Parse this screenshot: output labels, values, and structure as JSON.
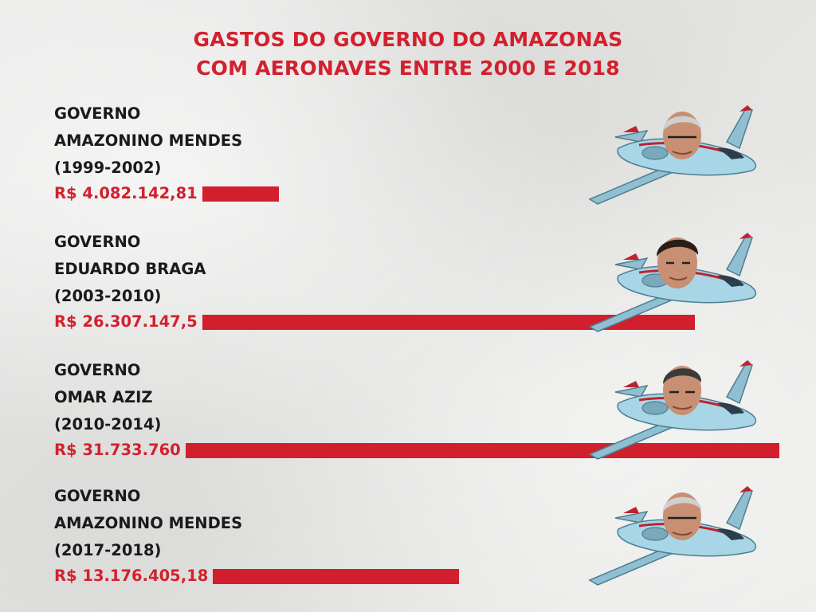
{
  "chart_data": {
    "type": "bar",
    "orientation": "horizontal",
    "title": "GASTOS DO GOVERNO DO AMAZONAS COM AERONAVES ENTRE 2000 E 2018",
    "title_lines": [
      "GASTOS DO GOVERNO DO AMAZONAS",
      "COM AERONAVES ENTRE 2000 E 2018"
    ],
    "bar_color": "#d11f2d",
    "categories": [
      {
        "line1": "GOVERNO",
        "line2": "AMAZONINO MENDES",
        "line3": "(1999-2002)"
      },
      {
        "line1": "GOVERNO",
        "line2": "EDUARDO BRAGA",
        "line3": "(2003-2010)"
      },
      {
        "line1": "GOVERNO",
        "line2": "OMAR AZIZ",
        "line3": "(2010-2014)"
      },
      {
        "line1": "GOVERNO",
        "line2": "AMAZONINO MENDES",
        "line3": "(2017-2018)"
      }
    ],
    "values": [
      4082142.81,
      26307147.5,
      31733760,
      13176405.18
    ],
    "value_labels": [
      "R$ 4.082.142,81",
      "R$ 26.307.147,5",
      "R$ 31.733.760",
      "R$ 13.176.405,18"
    ]
  }
}
